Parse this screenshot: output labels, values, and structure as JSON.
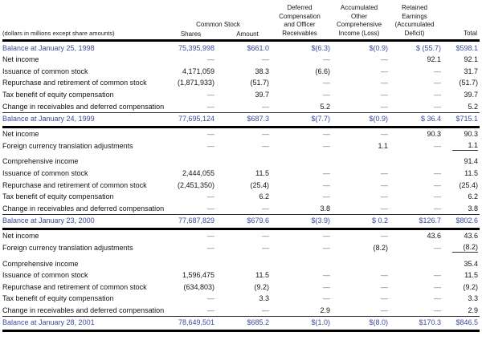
{
  "meta": {
    "note": "(dollars in millions except share amounts)"
  },
  "columns": {
    "common_stock_group": "Common Stock",
    "shares": "Shares",
    "amount": "Amount",
    "deferred": [
      "Deferred",
      "Compensation",
      "and Officer",
      "Receivables"
    ],
    "accumulated": [
      "Accumulated",
      "Other",
      "Comprehensive",
      "Income (Loss)"
    ],
    "retained": [
      "Retained",
      "Earnings",
      "(Accumulated",
      "Deficit)"
    ],
    "total": "Total"
  },
  "colors": {
    "balance_blue": "#3b4a9e",
    "body_text": "#131313",
    "dash_gray": "#6e6e6e",
    "rule_black": "#000000"
  },
  "rows": [
    {
      "label": "Balance at January 25, 1998",
      "type": "balance-open",
      "cells": [
        "75,395,998",
        "$661.0",
        "$(6.3)",
        "$(0.9)",
        "$ (55.7)",
        "$598.1"
      ]
    },
    {
      "label": "Net income",
      "type": "regular",
      "cells": [
        "—",
        "—",
        "—",
        "—",
        "92.1",
        "92.1"
      ]
    },
    {
      "label": "Issuance of common stock",
      "type": "regular",
      "cells": [
        "4,171,059",
        "38.3",
        "(6.6)",
        "—",
        "—",
        "31.7"
      ]
    },
    {
      "label": "Repurchase and retirement of common stock",
      "type": "regular",
      "cells": [
        "(1,871,933)",
        "(51.7)",
        "—",
        "—",
        "—",
        "(51.7)"
      ]
    },
    {
      "label": "Tax benefit of equity compensation",
      "type": "regular",
      "cells": [
        "—",
        "39.7",
        "—",
        "—",
        "—",
        "39.7"
      ]
    },
    {
      "label": "Change in receivables and deferred compensation",
      "type": "regular",
      "cells": [
        "—",
        "—",
        "5.2",
        "—",
        "—",
        "5.2"
      ]
    },
    {
      "label": "Balance at January 24, 1999",
      "type": "balance",
      "cells": [
        "77,695,124",
        "$687.3",
        "$(7.7)",
        "$(0.9)",
        "$ 36.4",
        "$715.1"
      ]
    },
    {
      "label": "Net income",
      "type": "regular",
      "cells": [
        "—",
        "—",
        "—",
        "—",
        "90.3",
        "90.3"
      ]
    },
    {
      "label": "Foreign currency translation adjustments",
      "type": "regular",
      "total_underline": true,
      "cells": [
        "—",
        "—",
        "—",
        "1.1",
        "—",
        "1.1"
      ]
    },
    {
      "label": "Comprehensive income",
      "type": "spaced",
      "cells": [
        "",
        "",
        "",
        "",
        "",
        "91.4"
      ]
    },
    {
      "label": "Issuance of common stock",
      "type": "regular",
      "cells": [
        "2,444,055",
        "11.5",
        "—",
        "—",
        "—",
        "11.5"
      ]
    },
    {
      "label": "Repurchase and retirement of common stock",
      "type": "regular",
      "cells": [
        "(2,451,350)",
        "(25.4)",
        "—",
        "—",
        "—",
        "(25.4)"
      ]
    },
    {
      "label": "Tax benefit of equity compensation",
      "type": "regular",
      "cells": [
        "—",
        "6.2",
        "—",
        "—",
        "—",
        "6.2"
      ]
    },
    {
      "label": "Change in receivables and deferred compensation",
      "type": "regular",
      "cells": [
        "—",
        "—",
        "3.8",
        "—",
        "—",
        "3.8"
      ]
    },
    {
      "label": "Balance at January 23, 2000",
      "type": "balance",
      "cells": [
        "77,687,829",
        "$679.6",
        "$(3.9)",
        "$ 0.2",
        "$126.7",
        "$802.6"
      ]
    },
    {
      "label": "Net income",
      "type": "regular",
      "cells": [
        "—",
        "—",
        "—",
        "—",
        "43.6",
        "43.6"
      ]
    },
    {
      "label": "Foreign currency translation adjustments",
      "type": "regular",
      "total_underline": true,
      "cells": [
        "—",
        "—",
        "—",
        "(8.2)",
        "—",
        "(8.2)"
      ]
    },
    {
      "label": "Comprehensive income",
      "type": "spaced",
      "cells": [
        "",
        "",
        "",
        "",
        "",
        "35.4"
      ]
    },
    {
      "label": "Issuance of common stock",
      "type": "regular",
      "cells": [
        "1,596,475",
        "11.5",
        "—",
        "—",
        "—",
        "11.5"
      ]
    },
    {
      "label": "Repurchase and retirement of common stock",
      "type": "regular",
      "cells": [
        "(634,803)",
        "(9.2)",
        "—",
        "—",
        "—",
        "(9.2)"
      ]
    },
    {
      "label": "Tax benefit of equity compensation",
      "type": "regular",
      "cells": [
        "—",
        "3.3",
        "—",
        "—",
        "—",
        "3.3"
      ]
    },
    {
      "label": "Change in receivables and deferred compensation",
      "type": "regular",
      "cells": [
        "—",
        "—",
        "2.9",
        "—",
        "—",
        "2.9"
      ]
    },
    {
      "label": "Balance at January 28, 2001",
      "type": "balance",
      "cells": [
        "78,649,501",
        "$685.2",
        "$(1.0)",
        "$(8.0)",
        "$170.3",
        "$846.5"
      ]
    }
  ]
}
